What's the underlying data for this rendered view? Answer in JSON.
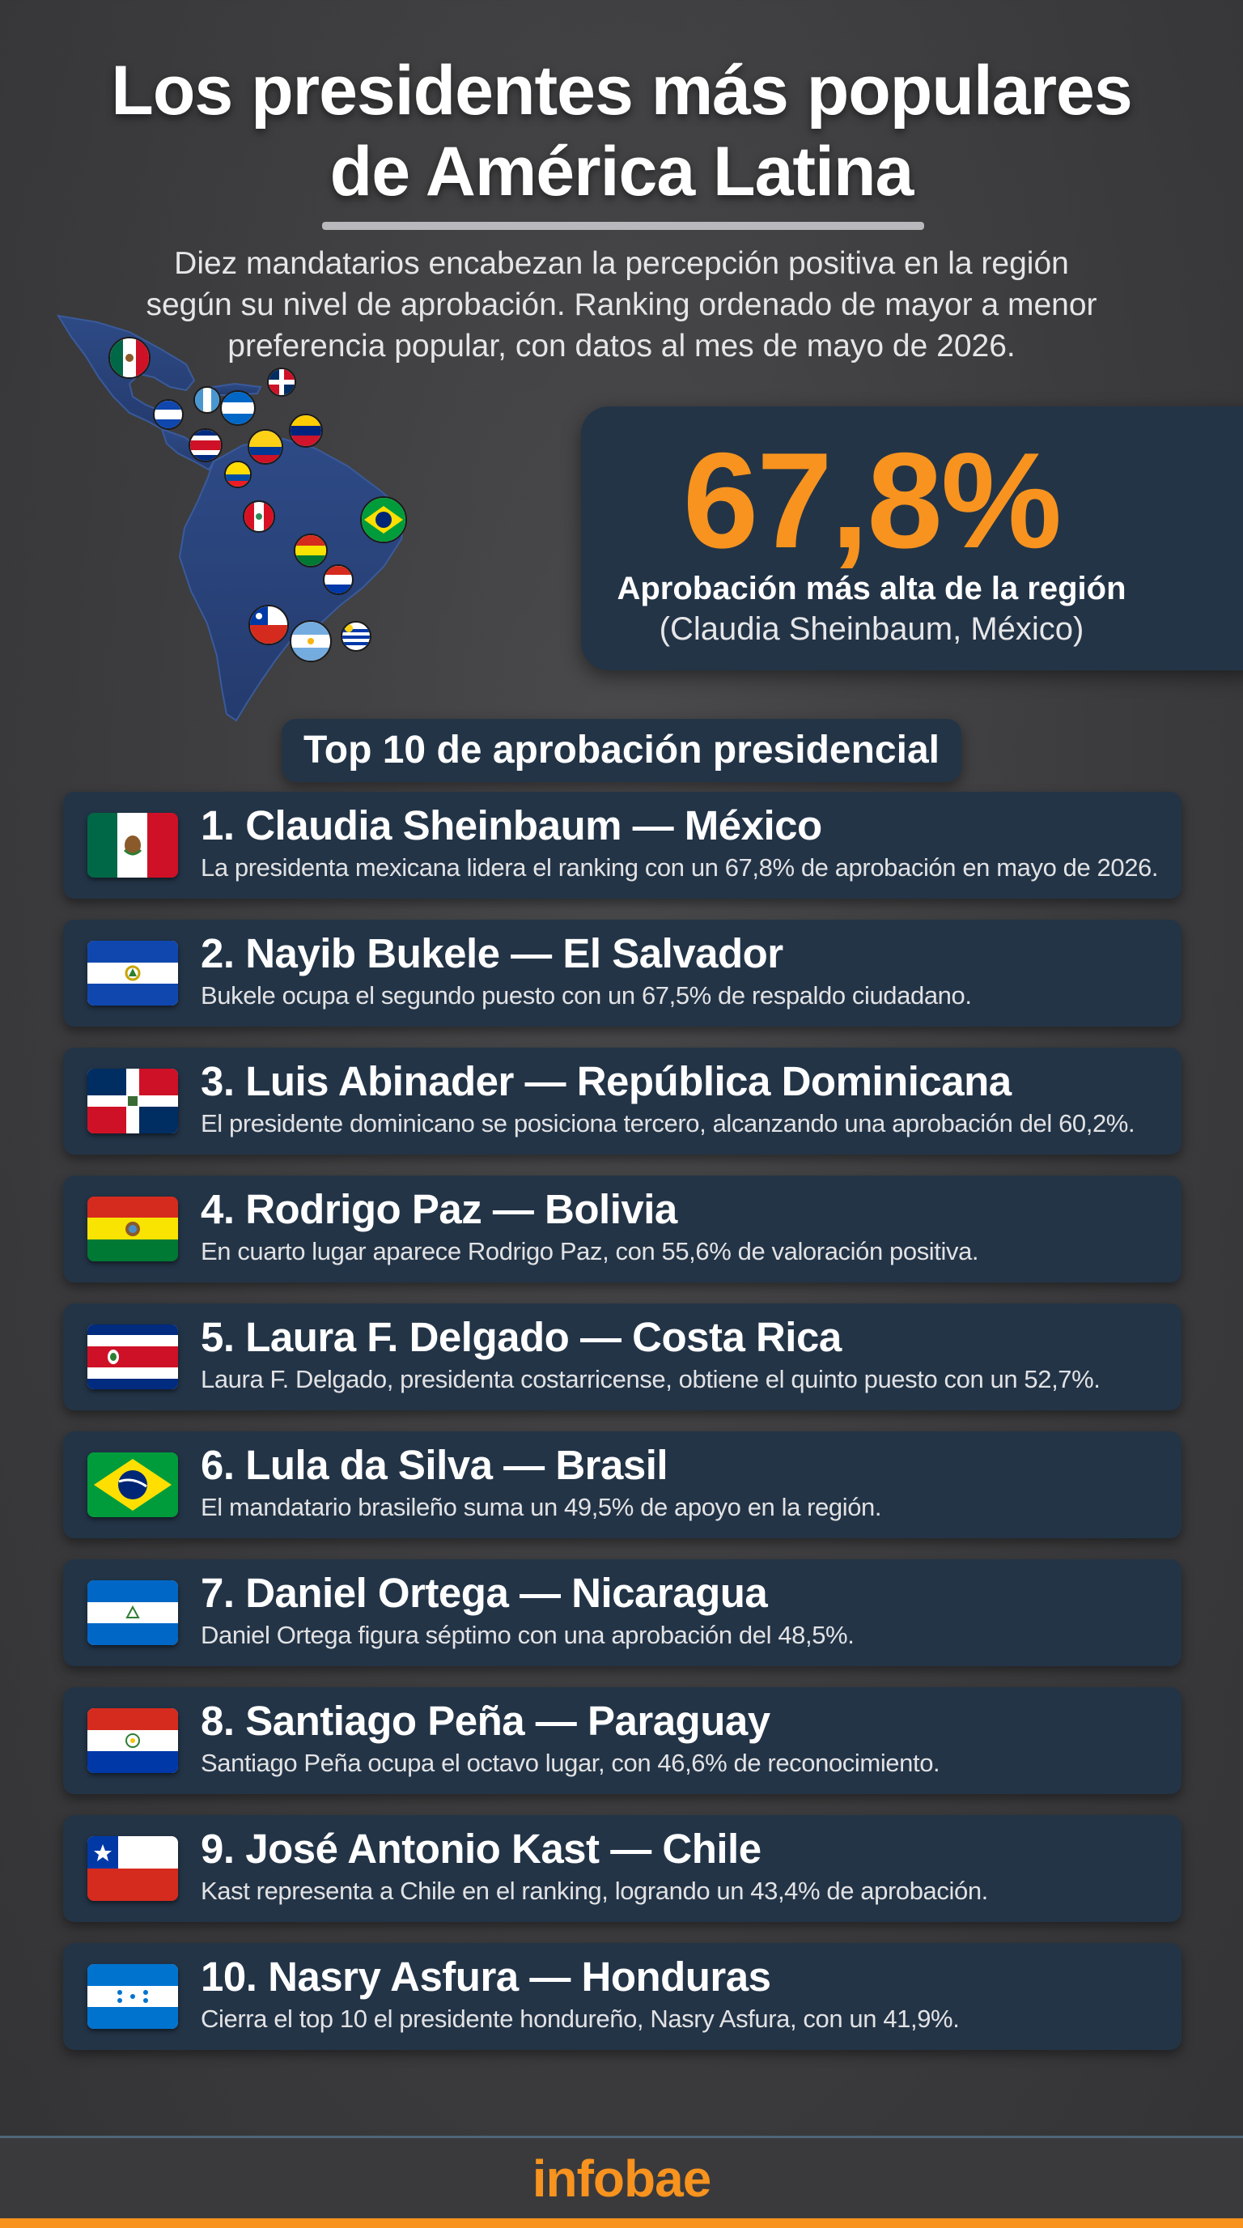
{
  "header": {
    "title_line1": "Los presidentes más populares",
    "title_line2": "de América Latina",
    "subtitle_line1": "Diez mandatarios encabezan la percepción positiva en la región",
    "subtitle_line2": "según su nivel de aprobación. Ranking ordenado de mayor a menor",
    "subtitle_line3": "preferencia popular, con datos al mes de mayo de 2026."
  },
  "highlight": {
    "value": "67,8%",
    "label": "Aprobación más alta de la región",
    "detail": "(Claudia Sheinbaum, México)",
    "accent_color": "#f7931e"
  },
  "section_title": "Top 10 de aprobación presidencial",
  "ranking": [
    {
      "title": "1. Claudia Sheinbaum — México",
      "desc": "La presidenta mexicana lidera el ranking con un 67,8% de aprobación en mayo de 2026.",
      "flag": "mexico-flag"
    },
    {
      "title": "2. Nayib Bukele — El Salvador",
      "desc": "Bukele ocupa el segundo puesto con un 67,5% de respaldo ciudadano.",
      "flag": "el-salvador-flag"
    },
    {
      "title": "3. Luis Abinader — República Dominicana",
      "desc": "El presidente dominicano se posiciona tercero, alcanzando una aprobación del 60,2%.",
      "flag": "dominican-republic-flag"
    },
    {
      "title": "4. Rodrigo Paz — Bolivia",
      "desc": "En cuarto lugar aparece Rodrigo Paz, con 55,6% de valoración positiva.",
      "flag": "bolivia-flag"
    },
    {
      "title": "5. Laura F. Delgado — Costa Rica",
      "desc": "Laura F. Delgado, presidenta costarricense, obtiene el quinto puesto con un 52,7%.",
      "flag": "costa-rica-flag"
    },
    {
      "title": "6. Lula da Silva — Brasil",
      "desc": "El mandatario brasileño suma un 49,5% de apoyo en la región.",
      "flag": "brazil-flag"
    },
    {
      "title": "7. Daniel Ortega — Nicaragua",
      "desc": "Daniel Ortega figura séptimo con una aprobación del 48,5%.",
      "flag": "nicaragua-flag"
    },
    {
      "title": "8. Santiago Peña — Paraguay",
      "desc": "Santiago Peña ocupa el octavo lugar, con 46,6% de reconocimiento.",
      "flag": "paraguay-flag"
    },
    {
      "title": "9. José Antonio Kast — Chile",
      "desc": "Kast representa a Chile en el ranking, logrando un 43,4% de aprobación.",
      "flag": "chile-flag"
    },
    {
      "title": "10. Nasry Asfura — Honduras",
      "desc": "Cierra el top 10 el presidente hondureño, Nasry Asfura, con un 41,9%.",
      "flag": "honduras-flag"
    }
  ],
  "footer": {
    "brand": "infobae",
    "brand_color": "#f7931e"
  }
}
